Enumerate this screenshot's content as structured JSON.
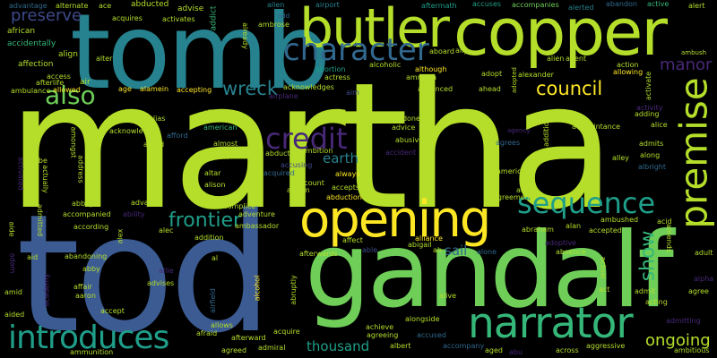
{
  "palette": {
    "background": "#000000",
    "lime": "#b5de2b",
    "green": "#6ece58",
    "bright_green": "#35b779",
    "teal": "#1f9e89",
    "cyan_teal": "#26828e",
    "steel_blue": "#31688e",
    "indigo": "#3e4989",
    "purple": "#482878",
    "dark_purple": "#440154",
    "yellow": "#fde725"
  },
  "words": {
    "w_martha": "martha",
    "w_tod": "tod",
    "w_tomb": "tomb",
    "w_gandalf": "gandalf",
    "w_copper": "copper",
    "w_butler": "butler",
    "w_opening": "opening",
    "w_narrator": "narrator",
    "w_introduces": "introduces",
    "w_character": "character",
    "w_premise": "premise",
    "w_sequence": "sequence",
    "w_credit": "credit",
    "w_also": "also",
    "w_frontier": "frontier",
    "w_council": "council",
    "w_show": "show",
    "w_wreck": "wreck",
    "w_preserve": "preserve",
    "w_manor": "manor",
    "w_ongoing": "ongoing",
    "w_thousand": "thousand",
    "w_earth": "earth",
    "w_sail": "sail",
    "w_advantage": "advantage",
    "w_alternate": "alternate",
    "w_ace": "ace",
    "w_abducted": "abducted",
    "w_advise": "advise",
    "w_addict": "addict",
    "w_allen": "allen",
    "w_aftermath": "aftermath",
    "w_accuses": "accuses",
    "w_accompanies": "accompanies",
    "w_alerted": "alerted",
    "w_abandon": "abandon",
    "w_active": "active",
    "w_alert": "alert",
    "w_african": "african",
    "w_accidentally": "accidentally",
    "w_affection": "affection",
    "w_access": "access",
    "w_afterlife": "afterlife",
    "w_ambulance": "ambulance",
    "w_allowed": "allowed",
    "w_align": "align",
    "w_alter": "alter",
    "w_air": "air",
    "w_age": "age",
    "w_alamein": "alamein",
    "w_accepting": "accepting",
    "w_acquires": "acquires",
    "w_activates": "activates",
    "w_already": "already",
    "w_airport": "airport",
    "w_add": "add",
    "w_ambrose": "ambrose",
    "w_aboard": "aboard",
    "w_ally": "ally",
    "w_alien": "alien",
    "w_agent": "agent",
    "w_ambush": "ambush",
    "w_abortion": "abortion",
    "w_alcoholic": "alcoholic",
    "w_actress": "actress",
    "w_acknowledges": "acknowledges",
    "w_aim": "aim",
    "w_although": "although",
    "w_amnesia": "amnesia",
    "w_advanced": "advanced",
    "w_adopt": "adopt",
    "w_ahead": "ahead",
    "w_adopted": "adopted",
    "w_alexander": "alexander",
    "w_action": "action",
    "w_allowing": "allowing",
    "w_activate": "activate",
    "w_airplane": "airplane",
    "w_among": "among",
    "w_acknowledge": "acknowledge",
    "w_alias": "alias",
    "w_american": "american",
    "w_allow": "allow",
    "w_abused": "abused",
    "w_abandoned": "abandoned",
    "w_advice": "advice",
    "w_abusive": "abusive",
    "w_agency": "agency",
    "w_agrees": "agrees",
    "w_activity": "activity",
    "w_adding": "adding",
    "w_alice": "alice",
    "w_admits": "admits",
    "w_acquaintance": "acquaintance",
    "w_additional": "additional",
    "w_alley": "alley",
    "w_along": "along",
    "w_albright": "albright",
    "w_abe": "abe",
    "w_amongst": "amongst",
    "w_afford": "afford",
    "w_alfred": "alfred",
    "w_almost": "almost",
    "w_alarm": "alarm",
    "w_abducts": "abducts",
    "w_ambition": "ambition",
    "w_accusing": "accusing",
    "w_accident": "accident",
    "w_acquired": "acquired",
    "w_always": "always",
    "w_america": "america",
    "w_activated": "activated",
    "w_actually": "actually",
    "w_address": "address",
    "w_altar": "altar",
    "w_alison": "alison",
    "w_account": "account",
    "w_allison": "allison",
    "w_accepts": "accepts",
    "w_abduction": "abduction",
    "w_aircraft": "aircraft",
    "w_agreement": "agreement",
    "w_actor": "actor",
    "w_abbey": "abbey",
    "w_accompanied": "accompanied",
    "w_ability": "ability",
    "w_advance": "advance",
    "w_accomplice": "accomplice",
    "w_adventure": "adventure",
    "w_ambassador": "ambassador",
    "w_ambushed": "ambushed",
    "w_acid": "acid",
    "w_aide": "aide",
    "w_admitted": "admitted",
    "w_according": "according",
    "w_alec": "alec",
    "w_alex": "alex",
    "w_addition": "addition",
    "w_abigail": "abigail",
    "w_alliance": "alliance",
    "w_affect": "affect",
    "w_abraham": "abraham",
    "w_alan": "alan",
    "w_accepted": "accepted",
    "w_adoptive": "adoptive",
    "w_absence": "absence",
    "w_amends": "amends",
    "w_adult": "adult",
    "w_aid": "aid",
    "w_abandoning": "abandoning",
    "w_al": "al",
    "w_afterwards": "afterwards",
    "w_able": "able",
    "w_ab": "ab",
    "w_alone": "alone",
    "w_adam": "adam",
    "w_abby": "abby",
    "w_allie": "allie",
    "w_affair": "affair",
    "w_aaron": "aaron",
    "w_advises": "advises",
    "w_alcohol": "alcohol",
    "w_abruptly": "abruptly",
    "w_actual": "actual",
    "w_act": "act",
    "w_admit": "admit",
    "w_alpha": "alpha",
    "w_agree": "agree",
    "w_amid": "amid",
    "w_academy": "academy",
    "w_accept": "accept",
    "w_aided": "aided",
    "w_airfield": "airfield",
    "w_alive": "alive",
    "w_acting": "acting",
    "w_admitting": "admitting",
    "w_alongside": "alongside",
    "w_acquire": "acquire",
    "w_achieve": "achieve",
    "w_afraid": "afraid",
    "w_allows": "allows",
    "w_afterward": "afterward",
    "w_agreeing": "agreeing",
    "w_accused": "accused",
    "w_aggressive": "aggressive",
    "w_albert": "albert",
    "w_accompany": "accompany",
    "w_admiral": "admiral",
    "w_agreed": "agreed",
    "w_ammunition": "ammunition",
    "w_aged": "aged",
    "w_abu": "abu",
    "w_across": "across",
    "w_ambitious": "ambitious"
  }
}
